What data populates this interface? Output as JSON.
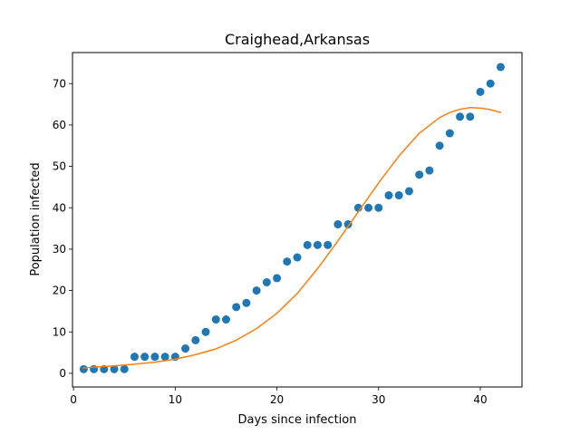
{
  "chart_data": {
    "type": "scatter",
    "title": "Craighead,Arkansas",
    "xlabel": "Days since infection",
    "ylabel": "Population infected",
    "xlim": [
      -0.1,
      44.1
    ],
    "ylim": [
      -3.3,
      77.5
    ],
    "xticks": [
      0,
      10,
      20,
      30,
      40
    ],
    "yticks": [
      0,
      10,
      20,
      30,
      40,
      50,
      60,
      70
    ],
    "grid": false,
    "series": [
      {
        "kind": "scatter",
        "color": "#1f77b4",
        "x": [
          1,
          2,
          3,
          4,
          5,
          6,
          7,
          8,
          9,
          10,
          11,
          12,
          13,
          14,
          15,
          16,
          17,
          18,
          19,
          20,
          21,
          22,
          23,
          24,
          25,
          26,
          27,
          28,
          29,
          30,
          31,
          32,
          33,
          34,
          35,
          36,
          37,
          38,
          39,
          40,
          41,
          42
        ],
        "y": [
          1,
          1,
          1,
          1,
          1,
          4,
          4,
          4,
          4,
          4,
          6,
          8,
          10,
          13,
          13,
          16,
          17,
          20,
          22,
          23,
          27,
          28,
          31,
          31,
          31,
          36,
          36,
          40,
          40,
          40,
          43,
          43,
          44,
          48,
          49,
          55,
          58,
          62,
          62,
          68,
          70,
          74
        ]
      },
      {
        "kind": "line",
        "color": "#ff7f0e",
        "x": [
          1,
          2,
          4,
          6,
          8,
          10,
          12,
          14,
          16,
          18,
          20,
          22,
          24,
          26,
          28,
          30,
          32,
          34,
          36,
          37,
          38,
          39,
          40,
          41,
          42
        ],
        "y": [
          1.3,
          1.5,
          1.8,
          2.2,
          2.7,
          3.4,
          4.5,
          5.9,
          8.0,
          10.8,
          14.5,
          19.3,
          25.3,
          32.0,
          39.0,
          46.0,
          52.5,
          58.0,
          61.8,
          63.0,
          63.8,
          64.2,
          64.1,
          63.7,
          63.0
        ]
      }
    ]
  }
}
